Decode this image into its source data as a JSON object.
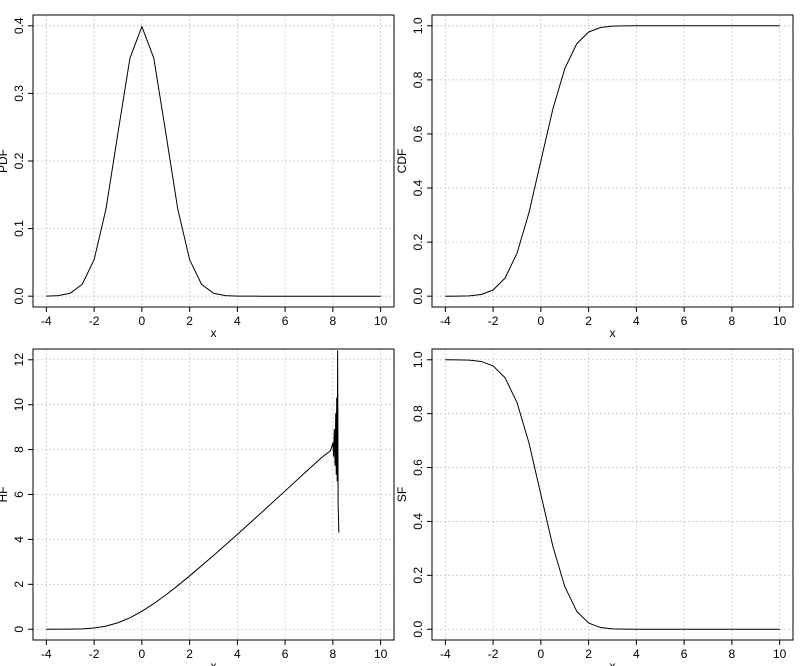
{
  "chart_data": [
    {
      "type": "line",
      "xlabel": "x",
      "ylabel": "PDF",
      "xlim": [
        -4,
        10
      ],
      "ylim": [
        0,
        0.4
      ],
      "xticks": [
        "-4",
        "-2",
        "0",
        "2",
        "4",
        "6",
        "8",
        "10"
      ],
      "yticks": [
        "0.0",
        "0.1",
        "0.2",
        "0.3",
        "0.4"
      ],
      "grid": true,
      "series": [
        {
          "x": [
            -4,
            -3.5,
            -3,
            -2.5,
            -2,
            -1.5,
            -1,
            -0.5,
            0,
            0.5,
            1,
            1.5,
            2,
            2.5,
            3,
            3.5,
            4,
            5,
            6,
            7,
            8,
            9,
            10
          ],
          "y": [
            0.0001,
            0.0009,
            0.0044,
            0.0175,
            0.054,
            0.1295,
            0.242,
            0.3521,
            0.3989,
            0.3521,
            0.242,
            0.1295,
            0.054,
            0.0175,
            0.0044,
            0.0009,
            0.0001,
            0,
            0,
            0,
            0,
            0,
            0
          ]
        }
      ]
    },
    {
      "type": "line",
      "xlabel": "x",
      "ylabel": "CDF",
      "xlim": [
        -4,
        10
      ],
      "ylim": [
        0,
        1
      ],
      "xticks": [
        "-4",
        "-2",
        "0",
        "2",
        "4",
        "6",
        "8",
        "10"
      ],
      "yticks": [
        "0.0",
        "0.2",
        "0.4",
        "0.6",
        "0.8",
        "1.0"
      ],
      "grid": true,
      "series": [
        {
          "x": [
            -4,
            -3.5,
            -3,
            -2.5,
            -2,
            -1.5,
            -1,
            -0.5,
            0,
            0.5,
            1,
            1.5,
            2,
            2.5,
            3,
            3.5,
            4,
            5,
            6,
            7,
            8,
            9,
            10
          ],
          "y": [
            0,
            0.0002,
            0.0013,
            0.0062,
            0.0228,
            0.0668,
            0.1587,
            0.3085,
            0.5,
            0.6915,
            0.8413,
            0.9332,
            0.9772,
            0.9938,
            0.9987,
            0.9998,
            1,
            1,
            1,
            1,
            1,
            1,
            1
          ]
        }
      ]
    },
    {
      "type": "line",
      "xlabel": "x",
      "ylabel": "HF",
      "xlim": [
        -4,
        10
      ],
      "ylim": [
        0,
        12
      ],
      "xticks": [
        "-4",
        "-2",
        "0",
        "2",
        "4",
        "6",
        "8",
        "10"
      ],
      "yticks": [
        "0",
        "2",
        "4",
        "6",
        "8",
        "10",
        "12"
      ],
      "grid": true,
      "series": [
        {
          "x": [
            -4,
            -3,
            -2.5,
            -2,
            -1.5,
            -1,
            -0.5,
            0,
            0.5,
            1,
            1.5,
            2,
            3,
            4,
            5,
            6,
            7,
            7.5,
            7.9,
            8.0,
            8.03,
            8.06,
            8.09,
            8.12,
            8.14,
            8.16,
            8.18,
            8.2,
            8.22,
            8.25
          ],
          "y": [
            0.0001,
            0.0044,
            0.0176,
            0.0553,
            0.1388,
            0.2876,
            0.5092,
            0.7979,
            1.1411,
            1.5251,
            1.9387,
            2.3732,
            3.2831,
            4.2255,
            5.1865,
            6.1585,
            7.1372,
            7.62,
            7.95,
            8.3,
            7.7,
            8.9,
            7.3,
            9.6,
            6.9,
            10.3,
            6.6,
            12.4,
            5.6,
            4.3
          ]
        }
      ]
    },
    {
      "type": "line",
      "xlabel": "x",
      "ylabel": "SF",
      "xlim": [
        -4,
        10
      ],
      "ylim": [
        0,
        1
      ],
      "xticks": [
        "-4",
        "-2",
        "0",
        "2",
        "4",
        "6",
        "8",
        "10"
      ],
      "yticks": [
        "0.0",
        "0.2",
        "0.4",
        "0.6",
        "0.8",
        "1.0"
      ],
      "grid": true,
      "series": [
        {
          "x": [
            -4,
            -3.5,
            -3,
            -2.5,
            -2,
            -1.5,
            -1,
            -0.5,
            0,
            0.5,
            1,
            1.5,
            2,
            2.5,
            3,
            3.5,
            4,
            5,
            6,
            7,
            8,
            9,
            10
          ],
          "y": [
            1,
            0.9998,
            0.9987,
            0.9938,
            0.9772,
            0.9332,
            0.8413,
            0.6915,
            0.5,
            0.3085,
            0.1587,
            0.0668,
            0.0228,
            0.0062,
            0.0013,
            0.0002,
            0,
            0,
            0,
            0,
            0,
            0,
            0
          ]
        }
      ]
    }
  ]
}
